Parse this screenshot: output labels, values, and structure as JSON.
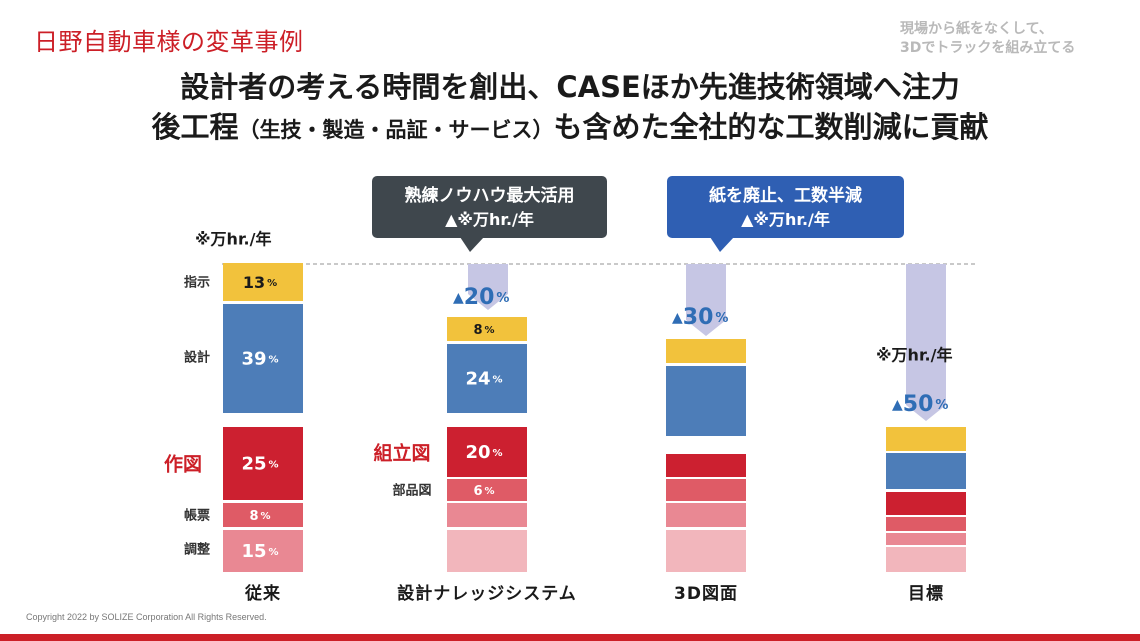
{
  "header": {
    "title": "日野自動車様の変革事例",
    "note_line1": "現場から紙をなくして、",
    "note_line2": "3Dでトラックを組み立てる"
  },
  "headline": {
    "line1": "設計者の考える時間を創出、CASEほか先進技術領域へ注力",
    "line2_a": "後工程",
    "line2_b": "（生技・製造・品証・サービス）",
    "line2_c": "も含めた全社的な工数削減に貢献"
  },
  "callouts": {
    "dark_line1": "熟練ノウハウ最大活用",
    "dark_line2": "▲※万hr./年",
    "blue_line1": "紙を廃止、工数半減",
    "blue_line2": "▲※万hr./年"
  },
  "colors": {
    "instruction": "#f2c23c",
    "design": "#4d7db8",
    "drawing": "#cc2030",
    "form": "#df5b66",
    "adjust": "#e98893",
    "light": "#f2b6bc",
    "arrow": "#c6c6e4",
    "dashed": "#a9a9a9"
  },
  "chart_data": {
    "type": "bar",
    "stacked": true,
    "unit_note": "※万hr./年",
    "unit_note_target": "※万hr./年",
    "categories": [
      "従来",
      "設計ナレッジシステム",
      "3D図面",
      "目標"
    ],
    "series": [
      {
        "name": "指示",
        "values": [
          13,
          8,
          null,
          null
        ]
      },
      {
        "name": "設計",
        "values": [
          39,
          24,
          null,
          null
        ]
      },
      {
        "name": "作図",
        "values": [
          25,
          null,
          null,
          null
        ]
      },
      {
        "name": "組立図",
        "values": [
          null,
          20,
          null,
          null
        ]
      },
      {
        "name": "帳票",
        "values": [
          8,
          null,
          null,
          null
        ]
      },
      {
        "name": "部品図",
        "values": [
          null,
          6,
          null,
          null
        ]
      },
      {
        "name": "調整",
        "values": [
          15,
          null,
          null,
          null
        ]
      }
    ],
    "reductions": [
      {
        "category": "設計ナレッジシステム",
        "value": 20,
        "label": "▲",
        "unit": "%"
      },
      {
        "category": "3D図面",
        "value": 30,
        "label": "▲",
        "unit": "%"
      },
      {
        "category": "目標",
        "value": 50,
        "label": "▲",
        "unit": "%"
      }
    ],
    "row_labels": {
      "instruction": "指示",
      "design": "設計",
      "drawing": "作図",
      "assembly": "組立図",
      "form": "帳票",
      "parts": "部品図",
      "adjust": "調整"
    },
    "value_unit": "%",
    "title": "",
    "xlabel": "",
    "ylabel": ""
  },
  "footer": {
    "copyright": "Copyright 2022 by SOLIZE Corporation All Rights Reserved."
  }
}
